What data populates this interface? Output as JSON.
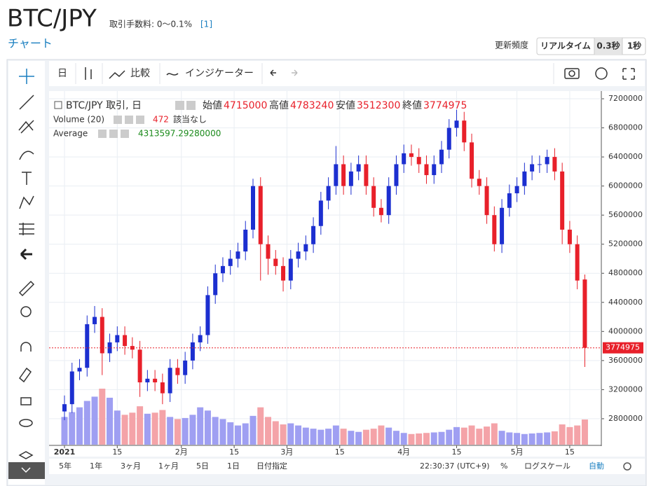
{
  "header": {
    "title": "BTC/JPY",
    "fee_text": "取引手数料: 0〜0.1%",
    "fee_note": "[1]",
    "chart_link": "チャート",
    "refresh_label": "更新頻度",
    "refresh_options": [
      "リアルタイム",
      "0.3秒",
      "1秒"
    ]
  },
  "toolbar": {
    "interval": "日",
    "compare": "比較",
    "indicator": "インジケーター"
  },
  "bottom_bar": {
    "ranges": [
      "5年",
      "1年",
      "3ヶ月",
      "1ヶ月",
      "5日",
      "1日",
      "日付指定"
    ],
    "clock": "22:30:37 (UTC+9)",
    "percent": "%",
    "log_scale": "ログスケール",
    "auto": "自動"
  },
  "chart_data": {
    "type": "candlestick",
    "title": "BTC/JPY 取引, 日",
    "legend": {
      "open_label": "始値",
      "high_label": "高値",
      "low_label": "安値",
      "close_label": "終値",
      "volume_label": "Volume (20)",
      "volume_note": "該当なし",
      "average_label": "Average",
      "average_value": {
        "value": 4313597.2928,
        "label": "4313597.29280000"
      }
    },
    "up_color": "#1c2fd0",
    "down_color": "#e8202a",
    "volume_up_color": "#9f9ff2",
    "volume_down_color": "#f4a3a8",
    "grid": true,
    "x": [
      "2021-01-01",
      "2021-01-03",
      "2021-01-05",
      "2021-01-07",
      "2021-01-09",
      "2021-01-11",
      "2021-01-13",
      "2021-01-15",
      "2021-01-17",
      "2021-01-19",
      "2021-01-21",
      "2021-01-23",
      "2021-01-25",
      "2021-01-27",
      "2021-01-29",
      "2021-01-31",
      "2021-02-02",
      "2021-02-04",
      "2021-02-06",
      "2021-02-08",
      "2021-02-10",
      "2021-02-12",
      "2021-02-14",
      "2021-02-16",
      "2021-02-18",
      "2021-02-20",
      "2021-02-22",
      "2021-02-24",
      "2021-02-26",
      "2021-02-28",
      "2021-03-02",
      "2021-03-04",
      "2021-03-06",
      "2021-03-08",
      "2021-03-10",
      "2021-03-12",
      "2021-03-14",
      "2021-03-16",
      "2021-03-18",
      "2021-03-20",
      "2021-03-22",
      "2021-03-24",
      "2021-03-26",
      "2021-03-28",
      "2021-03-30",
      "2021-04-01",
      "2021-04-03",
      "2021-04-05",
      "2021-04-07",
      "2021-04-09",
      "2021-04-11",
      "2021-04-13",
      "2021-04-15",
      "2021-04-17",
      "2021-04-19",
      "2021-04-21",
      "2021-04-23",
      "2021-04-25",
      "2021-04-27",
      "2021-04-29",
      "2021-05-01",
      "2021-05-03",
      "2021-05-05",
      "2021-05-07",
      "2021-05-09",
      "2021-05-11",
      "2021-05-13",
      "2021-05-15",
      "2021-05-17",
      "2021-05-19"
    ],
    "open": [
      2900000,
      3000000,
      3450000,
      3500000,
      4100000,
      4200000,
      3700000,
      3850000,
      3950000,
      3800000,
      3750000,
      3300000,
      3350000,
      3300000,
      3150000,
      3500000,
      3400000,
      3600000,
      3850000,
      3950000,
      4500000,
      4800000,
      4900000,
      5000000,
      5100000,
      5400000,
      6000000,
      5200000,
      5000000,
      4900000,
      4700000,
      5000000,
      5100000,
      5200000,
      5450000,
      5800000,
      6000000,
      6300000,
      6000000,
      6200000,
      6300000,
      6000000,
      5700000,
      5600000,
      6000000,
      6300000,
      6450000,
      6400000,
      6300000,
      6150000,
      6300000,
      6500000,
      6800000,
      6900000,
      6600000,
      6100000,
      6000000,
      5600000,
      5200000,
      5700000,
      5900000,
      6000000,
      6200000,
      6300000,
      6300000,
      6400000,
      6200000,
      5400000,
      5200000,
      4715000
    ],
    "high": [
      3120000,
      3570000,
      3620000,
      4220000,
      4350000,
      4320000,
      3970000,
      4070000,
      4070000,
      3920000,
      3870000,
      3470000,
      3470000,
      3420000,
      3620000,
      3620000,
      3720000,
      3970000,
      4070000,
      4620000,
      4920000,
      5020000,
      5120000,
      5220000,
      5520000,
      6100000,
      6120000,
      5320000,
      5120000,
      5020000,
      5120000,
      5220000,
      5320000,
      5570000,
      5920000,
      6120000,
      6550000,
      6420000,
      6320000,
      6420000,
      6420000,
      6120000,
      5820000,
      6120000,
      6420000,
      6570000,
      6570000,
      6520000,
      6420000,
      6420000,
      6620000,
      6920000,
      7050000,
      7020000,
      6720000,
      6220000,
      6120000,
      5720000,
      5820000,
      6020000,
      6120000,
      6320000,
      6420000,
      6420000,
      6500000,
      6520000,
      6320000,
      5520000,
      5320000,
      4783240
    ],
    "low": [
      2780000,
      2880000,
      3330000,
      3380000,
      3980000,
      3400000,
      3580000,
      3730000,
      3680000,
      3630000,
      3100000,
      3180000,
      3180000,
      3000000,
      3030000,
      3280000,
      3280000,
      3480000,
      3730000,
      3830000,
      4380000,
      4680000,
      4780000,
      4880000,
      4980000,
      5280000,
      4700000,
      4780000,
      4780000,
      4550000,
      4580000,
      4880000,
      4980000,
      5080000,
      5330000,
      5680000,
      5880000,
      5880000,
      5880000,
      6080000,
      5880000,
      5580000,
      5500000,
      5480000,
      5880000,
      6180000,
      6280000,
      6180000,
      6030000,
      6030000,
      6180000,
      6380000,
      6680000,
      6480000,
      5980000,
      5880000,
      5480000,
      5100000,
      5080000,
      5580000,
      5780000,
      5880000,
      6080000,
      6180000,
      6180000,
      6080000,
      5200000,
      5080000,
      4580000,
      3512300
    ],
    "close": [
      3000000,
      3450000,
      3500000,
      4100000,
      4200000,
      3700000,
      3850000,
      3950000,
      3800000,
      3750000,
      3300000,
      3350000,
      3300000,
      3150000,
      3500000,
      3400000,
      3600000,
      3850000,
      3950000,
      4500000,
      4800000,
      4900000,
      5000000,
      5100000,
      5400000,
      6000000,
      5200000,
      5000000,
      4900000,
      4700000,
      5000000,
      5100000,
      5200000,
      5450000,
      5800000,
      6000000,
      6300000,
      6000000,
      6200000,
      6300000,
      6000000,
      5700000,
      5600000,
      6000000,
      6300000,
      6450000,
      6400000,
      6300000,
      6150000,
      6300000,
      6500000,
      6800000,
      6900000,
      6600000,
      6100000,
      6000000,
      5600000,
      5200000,
      5700000,
      5900000,
      6000000,
      6200000,
      6300000,
      6300000,
      6400000,
      6200000,
      5400000,
      5200000,
      4700000,
      3774975
    ],
    "volume": [
      520,
      610,
      700,
      820,
      900,
      1050,
      880,
      640,
      560,
      600,
      720,
      580,
      600,
      650,
      520,
      480,
      500,
      560,
      700,
      640,
      520,
      480,
      420,
      360,
      400,
      540,
      700,
      520,
      440,
      380,
      400,
      360,
      320,
      300,
      280,
      300,
      360,
      300,
      260,
      240,
      280,
      300,
      360,
      320,
      260,
      220,
      200,
      210,
      220,
      230,
      240,
      280,
      330,
      320,
      360,
      300,
      340,
      400,
      260,
      230,
      220,
      200,
      210,
      220,
      230,
      250,
      380,
      330,
      360,
      472
    ],
    "ylim": [
      2443000,
      7287000
    ],
    "yticks": [
      2800000,
      3200000,
      3600000,
      4000000,
      4400000,
      4800000,
      5200000,
      5600000,
      6000000,
      6400000,
      6800000,
      7200000
    ],
    "xticks": [
      {
        "value": "2021-01-01",
        "label": "2021"
      },
      {
        "value": "2021-01-15",
        "label": "15"
      },
      {
        "value": "2021-02-01",
        "label": "2月"
      },
      {
        "value": "2021-02-15",
        "label": "15"
      },
      {
        "value": "2021-03-01",
        "label": "3月"
      },
      {
        "value": "2021-03-15",
        "label": "15"
      },
      {
        "value": "2021-04-01",
        "label": "4月"
      },
      {
        "value": "2021-04-15",
        "label": "15"
      },
      {
        "value": "2021-05-01",
        "label": "5月"
      },
      {
        "value": "2021-05-15",
        "label": "15"
      }
    ]
  }
}
